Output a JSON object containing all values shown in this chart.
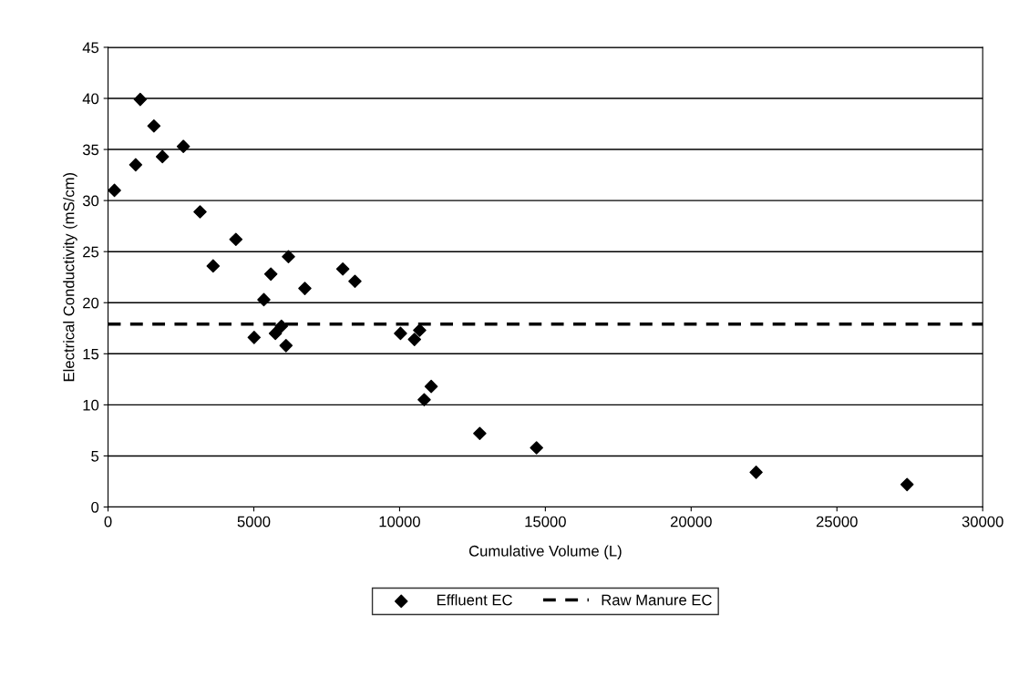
{
  "chart_data": {
    "type": "scatter",
    "xlabel": "Cumulative Volume (L)",
    "ylabel": "Electrical Conductivity (mS/cm)",
    "xlim": [
      0,
      30000
    ],
    "xticks": [
      0,
      5000,
      10000,
      15000,
      20000,
      25000,
      30000
    ],
    "ylim": [
      0,
      45
    ],
    "yticks": [
      0,
      5,
      10,
      15,
      20,
      25,
      30,
      35,
      40,
      45
    ],
    "grid": "y",
    "legend": "bottom",
    "series": [
      {
        "name": "Effluent EC",
        "color": "#000000",
        "marker": "diamond",
        "x": [
          219,
          948,
          1104,
          1573,
          1865,
          2583,
          3156,
          4385,
          3604,
          6188,
          5584,
          8052,
          8469,
          6750,
          5344,
          5010,
          5740,
          5947,
          6104,
          10031,
          10510,
          10688,
          11084,
          10844,
          12750,
          14697,
          22229,
          27406
        ],
        "values": [
          31.0,
          33.5,
          39.9,
          37.3,
          34.3,
          35.3,
          28.9,
          26.2,
          23.6,
          24.5,
          22.8,
          23.3,
          22.1,
          21.4,
          20.3,
          16.6,
          17.0,
          17.7,
          15.8,
          17.0,
          16.4,
          17.3,
          11.8,
          10.5,
          7.2,
          5.8,
          3.4,
          2.2
        ]
      },
      {
        "name": "Raw Manure EC",
        "color": "#000000",
        "type": "line",
        "line_style": "dashed",
        "marker": "none",
        "x": [
          0,
          30000
        ],
        "values": [
          17.9,
          17.9
        ]
      }
    ]
  }
}
